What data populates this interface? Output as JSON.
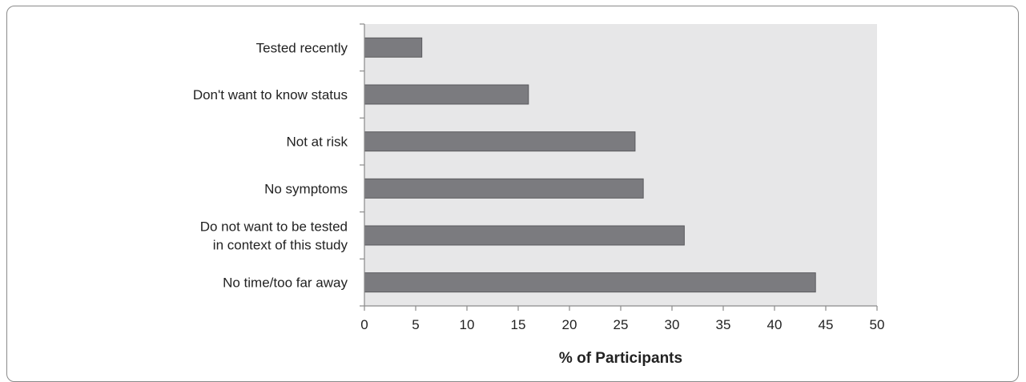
{
  "chart_data": {
    "type": "bar",
    "orientation": "horizontal",
    "categories": [
      "Tested recently",
      "Don't want to know status",
      "Not at risk",
      "No symptoms",
      "Do not want to be tested\nin context of this study",
      "No time/too far away"
    ],
    "values": [
      5.6,
      16.0,
      26.4,
      27.2,
      31.2,
      44.0
    ],
    "title": "",
    "xlabel": "% of Participants",
    "ylabel": "",
    "xlim": [
      0,
      50
    ],
    "xticks": [
      0,
      5,
      10,
      15,
      20,
      25,
      30,
      35,
      40,
      45,
      50
    ],
    "grid": false,
    "legend": "none",
    "colors": {
      "bar_fill": "#7b7b7f",
      "bar_stroke": "#5a5a5e",
      "plot_background": "#e7e7e8",
      "axis": "#8a8a8a"
    }
  }
}
